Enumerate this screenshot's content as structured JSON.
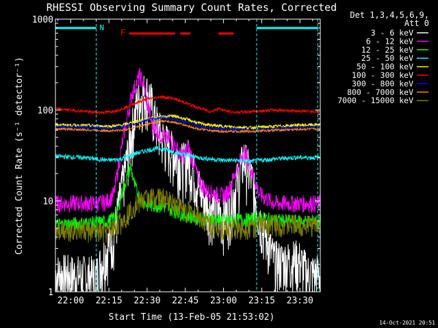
{
  "chart_data": {
    "type": "line",
    "title": "RHESSI Observing Summary Count Rates, Corrected",
    "xlabel": "Start Time (13-Feb-05 21:53:02)",
    "ylabel": "Corrected Count Rate (s⁻¹ detector⁻¹)",
    "yscale": "log",
    "ylim": [
      1,
      1000
    ],
    "xlim_minutes": [
      -6,
      98
    ],
    "x_ticks": [
      "22:00",
      "22:15",
      "22:30",
      "22:45",
      "23:00",
      "23:15",
      "23:30"
    ],
    "x_tick_minutes": [
      0,
      15,
      30,
      45,
      60,
      75,
      90
    ],
    "y_ticks": [
      "1",
      "10",
      "100",
      "1000"
    ],
    "y_tick_values": [
      1,
      10,
      100,
      1000
    ],
    "legend_header": [
      "Det 1,3,4,5,6,9,",
      "Att 0"
    ],
    "series": [
      {
        "name": "3 - 6 keV",
        "color": "#ffffff",
        "x": [
          -6,
          10,
          14,
          17,
          21,
          24,
          26,
          29,
          31,
          33,
          36,
          40,
          44,
          46,
          48,
          50,
          53,
          57,
          60,
          62,
          65,
          68,
          71,
          74,
          80,
          86,
          88,
          90,
          93,
          95,
          98
        ],
        "y": [
          1.6,
          1.5,
          3,
          4.5,
          20,
          60,
          120,
          160,
          145,
          80,
          50,
          35,
          26,
          30,
          22,
          15,
          10,
          8,
          7,
          8,
          15,
          30,
          18,
          7,
          2.2,
          2.2,
          2.3,
          2.2,
          1.6,
          1.6,
          1.6
        ]
      },
      {
        "name": "6 - 12 keV",
        "color": "#ff00ff",
        "x": [
          -6,
          10,
          14,
          17,
          20,
          24,
          27,
          28.5,
          30,
          32,
          35,
          40,
          44,
          46,
          48,
          50,
          53,
          57,
          60,
          62,
          65,
          68,
          71,
          74,
          80,
          88,
          98
        ],
        "y": [
          9.5,
          9.5,
          9.8,
          12,
          40,
          150,
          240,
          200,
          120,
          70,
          55,
          45,
          30,
          40,
          28,
          18,
          13,
          12,
          11.5,
          13,
          22,
          36,
          22,
          12,
          9.5,
          9.5,
          9.5
        ]
      },
      {
        "name": "12 - 25 keV",
        "color": "#00ff00",
        "x": [
          -6,
          10,
          15,
          18,
          20,
          22,
          23.5,
          25,
          27,
          30,
          35,
          40,
          45,
          50,
          55,
          60,
          65,
          70,
          75,
          80,
          88,
          98
        ],
        "y": [
          5.5,
          5.8,
          6,
          7,
          12,
          18,
          24,
          15,
          11,
          9,
          9,
          8,
          7,
          6.5,
          6.3,
          6.1,
          6.2,
          6.3,
          6.5,
          6.2,
          6,
          6
        ]
      },
      {
        "name": "25 - 50 keV",
        "color": "#00ffff",
        "x": [
          -6,
          5,
          10,
          15,
          20,
          25,
          30,
          35,
          40,
          45,
          50,
          55,
          60,
          65,
          70,
          75,
          80,
          88,
          98
        ],
        "y": [
          31,
          30,
          29,
          28,
          29,
          33,
          36,
          38,
          35,
          32,
          30,
          29,
          28,
          28,
          27,
          28,
          29,
          30,
          30
        ]
      },
      {
        "name": "50 - 100 keV",
        "color": "#ffff00",
        "x": [
          -6,
          10,
          15,
          20,
          25,
          30,
          35,
          40,
          45,
          50,
          55,
          60,
          65,
          70,
          75,
          80,
          88,
          98
        ],
        "y": [
          69,
          67,
          66,
          68,
          74,
          80,
          84,
          86,
          80,
          72,
          68,
          66,
          65,
          64,
          65,
          66,
          68,
          69
        ]
      },
      {
        "name": "100 - 300 keV",
        "color": "#ff0000",
        "x": [
          -6,
          5,
          10,
          15,
          20,
          25,
          30,
          35,
          40,
          45,
          50,
          55,
          58,
          62,
          65,
          70,
          75,
          80,
          88,
          98
        ],
        "y": [
          103,
          97,
          94,
          95,
          102,
          118,
          132,
          140,
          135,
          120,
          106,
          96,
          104,
          96,
          94,
          96,
          98,
          100,
          98,
          96
        ]
      },
      {
        "name": "300 - 800 keV",
        "color": "#0000ff",
        "x": [
          -6,
          10,
          15,
          20,
          25,
          30,
          35,
          40,
          45,
          50,
          55,
          60,
          65,
          70,
          75,
          80,
          88,
          98
        ],
        "y": [
          66,
          64,
          63,
          65,
          70,
          78,
          82,
          80,
          74,
          67,
          63,
          62,
          61,
          60,
          61,
          62,
          64,
          65
        ]
      },
      {
        "name": "800 - 7000 keV",
        "color": "#ff8c00",
        "x": [
          -6,
          10,
          15,
          20,
          25,
          30,
          35,
          40,
          45,
          50,
          55,
          60,
          65,
          70,
          75,
          80,
          88,
          98
        ],
        "y": [
          62,
          60,
          59,
          60,
          64,
          70,
          76,
          74,
          68,
          62,
          59,
          58,
          58,
          58,
          59,
          60,
          61,
          62
        ]
      },
      {
        "name": "7000 - 15000 keV",
        "color": "#808000",
        "x": [
          -6,
          5,
          10,
          15,
          20,
          25,
          30,
          35,
          40,
          45,
          50,
          55,
          60,
          65,
          70,
          75,
          80,
          88,
          98
        ],
        "y": [
          5.0,
          4.8,
          4.5,
          4.6,
          6,
          9,
          11,
          11,
          10,
          8,
          7,
          5.5,
          5,
          5,
          5.2,
          5.5,
          5.6,
          5.5,
          5.5
        ]
      }
    ],
    "annotations": {
      "night_bars_minutes": [
        [
          -6,
          10
        ],
        [
          73,
          97
        ]
      ],
      "night_label": "N",
      "flare_label": "F",
      "flare_bars_minutes": [
        [
          23,
          41
        ],
        [
          43,
          47
        ],
        [
          58,
          64
        ]
      ],
      "dashed_lines_minutes": [
        10,
        73,
        97
      ]
    },
    "footer_timestamp": "14-Oct-2021 20:51"
  }
}
